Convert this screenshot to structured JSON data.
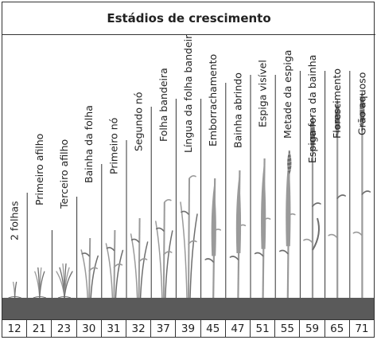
{
  "title": "Estádios de crescimento",
  "colors": {
    "ground": "#5a5a5a",
    "border": "#333333",
    "plant": "#9a9a9a",
    "plant_dark": "#6e6e6e"
  },
  "stages": [
    {
      "label": "2 folhas",
      "code": "12",
      "icon": "seedling-icon"
    },
    {
      "label": "Primeiro afilho",
      "code": "21",
      "icon": "tiller-icon"
    },
    {
      "label": "Terceiro afilho",
      "code": "23",
      "icon": "tiller-icon"
    },
    {
      "label": "Bainha da folha",
      "code": "30",
      "icon": "leaf-sheath-icon"
    },
    {
      "label": "Primeiro nó",
      "code": "31",
      "icon": "node-icon"
    },
    {
      "label": "Segundo nó",
      "code": "32",
      "icon": "node-icon"
    },
    {
      "label": "Folha bandeira",
      "code": "37",
      "icon": "flag-leaf-icon"
    },
    {
      "label": "Língua da folha bandeira",
      "code": "39",
      "icon": "ligule-icon"
    },
    {
      "label": "Emborrachamento",
      "code": "45",
      "icon": "boot-icon"
    },
    {
      "label": "Bainha abrindo",
      "code": "47",
      "icon": "sheath-opening-icon"
    },
    {
      "label": "Espiga visível",
      "code": "51",
      "icon": "ear-visible-icon"
    },
    {
      "label": "Metade da espiga",
      "code": "55",
      "icon": "half-ear-icon"
    },
    {
      "label": "Espiga fora da bainha",
      "code": "59",
      "icon": "ear-out-icon"
    },
    {
      "label": "Florescimento",
      "code": "65",
      "icon": "flowering-icon"
    },
    {
      "label": "Grão aquoso",
      "code": "71",
      "icon": "watery-grain-icon"
    }
  ]
}
